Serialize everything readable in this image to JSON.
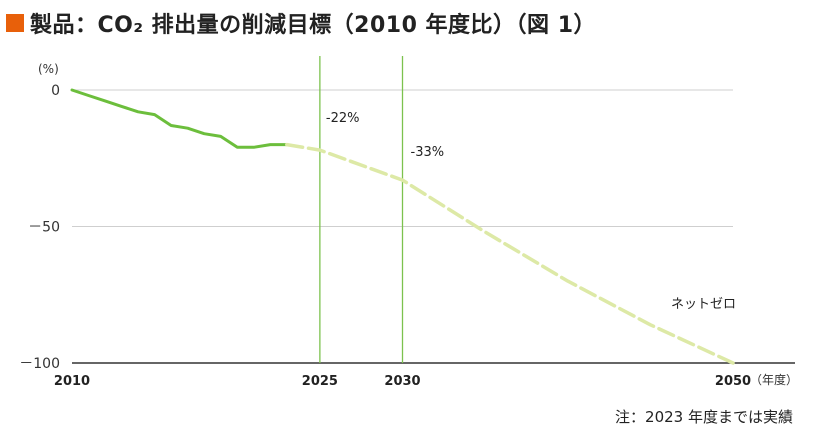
{
  "header": {
    "title": "製品：CO₂ 排出量の削減目標（2010 年度比）（図 1）",
    "marker_color": "#e8600a"
  },
  "footnote": "注：2023 年度までは実績",
  "chart_data": {
    "type": "line",
    "title": "製品：CO₂ 排出量の削減目標（2010 年度比）（図 1）",
    "xlabel": "（年度）",
    "ylabel": "(%)",
    "xlim": [
      2010,
      2050
    ],
    "ylim": [
      -100,
      0
    ],
    "x_ticks": [
      2010,
      2025,
      2030,
      2050
    ],
    "y_ticks": [
      0,
      -50,
      -100
    ],
    "y_tick_labels": [
      "0",
      "－50",
      "－100"
    ],
    "grid": "horizontal",
    "vertical_markers": [
      2025,
      2030
    ],
    "series": [
      {
        "style": "solid",
        "color": "#6cbe3c",
        "x": [
          2010,
          2011,
          2012,
          2013,
          2014,
          2015,
          2016,
          2017,
          2018,
          2019,
          2020,
          2021,
          2022,
          2023
        ],
        "y": [
          0,
          -2,
          -4,
          -6,
          -8,
          -9,
          -13,
          -14,
          -16,
          -17,
          -21,
          -21,
          -20,
          -20
        ]
      },
      {
        "style": "dashed",
        "color": "#dde9a6",
        "x": [
          2023,
          2025,
          2030,
          2035,
          2040,
          2045,
          2050
        ],
        "y": [
          -20,
          -22,
          -33,
          -52,
          -70,
          -86,
          -100
        ]
      }
    ],
    "annotations": [
      {
        "text": "-22%",
        "x": 2025,
        "y": -22
      },
      {
        "text": "-33%",
        "x": 2030,
        "y": -33
      },
      {
        "text": "ネットゼロ",
        "x": 2050,
        "y": -100
      }
    ]
  }
}
